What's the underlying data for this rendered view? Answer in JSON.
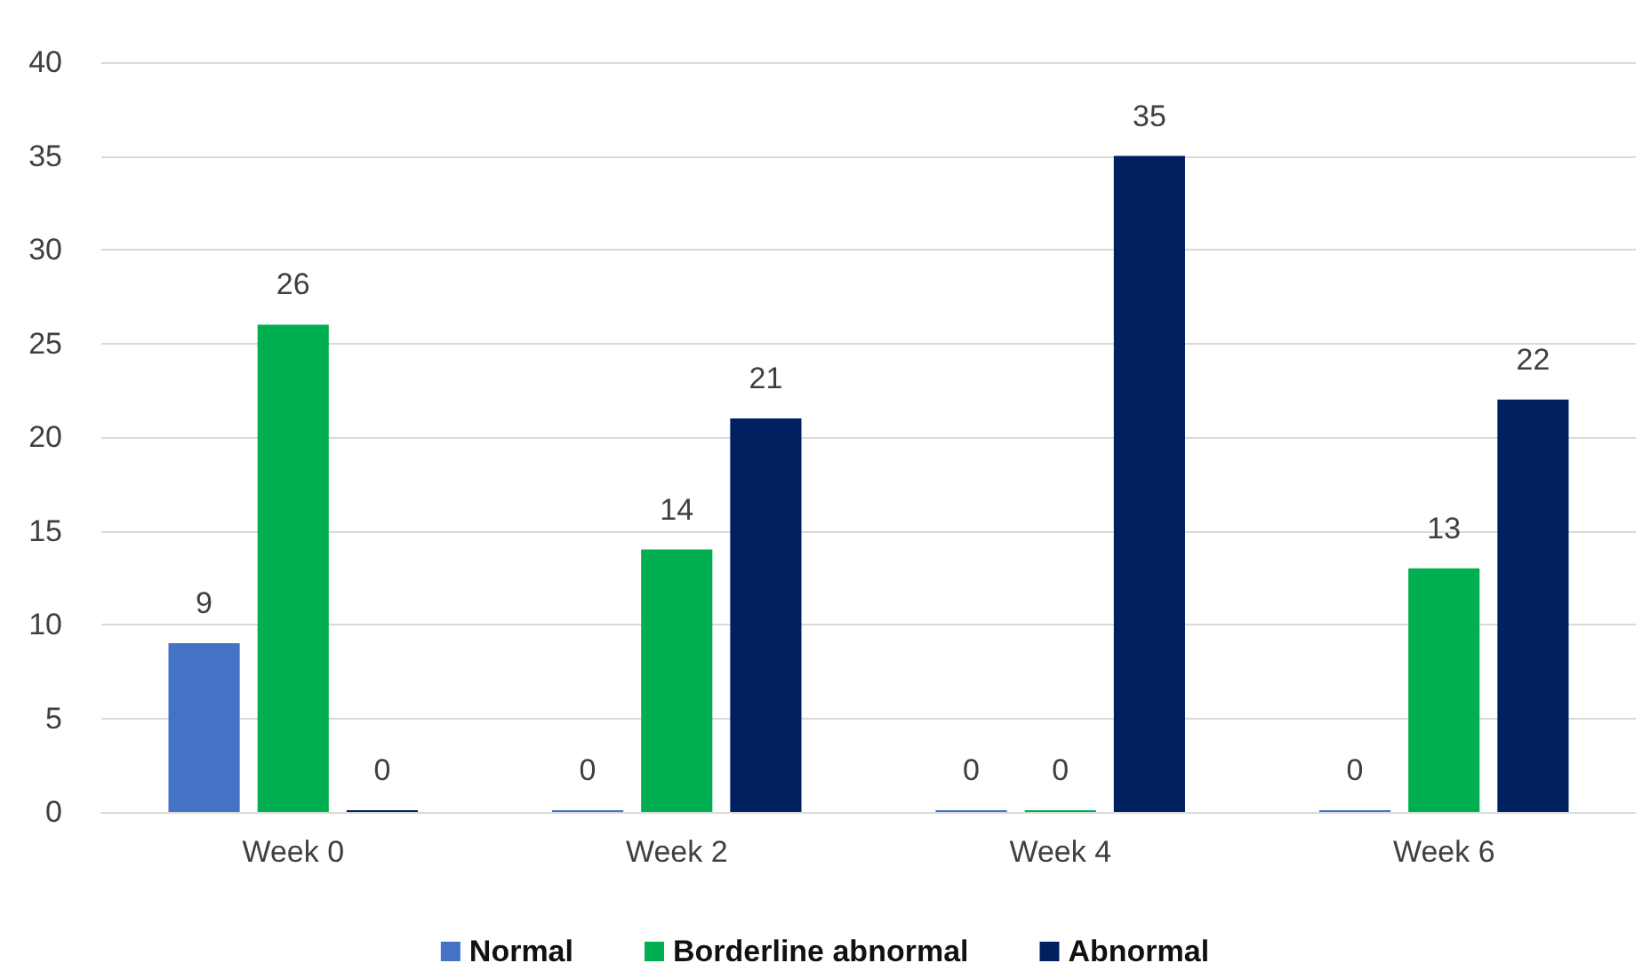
{
  "chart_data": {
    "type": "bar",
    "categories": [
      "Week 0",
      "Week 2",
      "Week 4",
      "Week 6"
    ],
    "series": [
      {
        "name": "Normal",
        "color": "#4472c4",
        "values": [
          9,
          0,
          0,
          0
        ]
      },
      {
        "name": "Borderline abnormal",
        "color": "#00b050",
        "values": [
          26,
          14,
          0,
          13
        ]
      },
      {
        "name": "Abnormal",
        "color": "#002060",
        "values": [
          0,
          21,
          35,
          22
        ]
      }
    ],
    "ylim": [
      0,
      40
    ],
    "yticks": [
      0,
      5,
      10,
      15,
      20,
      25,
      30,
      35,
      40
    ],
    "grid": "y",
    "legend": "bottom",
    "data_labels": true
  }
}
